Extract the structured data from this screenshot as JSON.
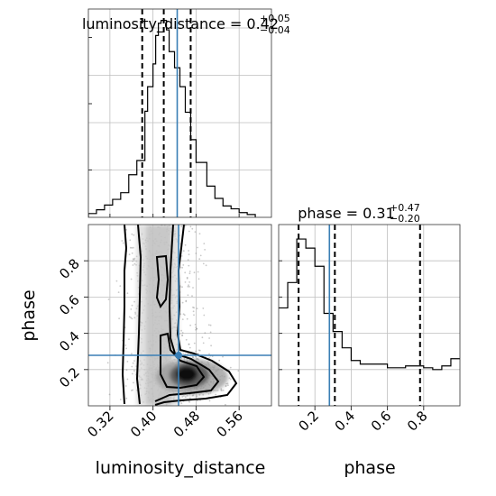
{
  "figure": {
    "type": "corner_plot",
    "parameters": [
      "luminosity_distance",
      "phase"
    ]
  },
  "chart_data": [
    {
      "type": "histogram",
      "parameter": "luminosity_distance",
      "title": {
        "main": "luminosity_distance = 0.42",
        "sup": "+0.05",
        "sub": "−0.04"
      },
      "xlim": [
        0.28,
        0.62
      ],
      "bin_edges": [
        0.28,
        0.295,
        0.31,
        0.325,
        0.34,
        0.355,
        0.37,
        0.385,
        0.39,
        0.4,
        0.405,
        0.41,
        0.415,
        0.425,
        0.43,
        0.44,
        0.45,
        0.46,
        0.47,
        0.48,
        0.5,
        0.515,
        0.53,
        0.545,
        0.56,
        0.575,
        0.59
      ],
      "bin_heights": [
        0.4,
        0.8,
        1.3,
        1.9,
        2.6,
        4.5,
        6.0,
        11.2,
        13.8,
        16.2,
        19.2,
        20.5,
        20.8,
        19.8,
        17.5,
        15.8,
        13.8,
        11.1,
        8.2,
        5.8,
        3.3,
        2.0,
        1.2,
        0.9,
        0.5,
        0.3
      ],
      "quantile_lines": [
        0.38,
        0.42,
        0.47
      ],
      "truth_line": 0.445,
      "ylim": [
        0,
        22
      ]
    },
    {
      "type": "scatter_contour",
      "x_parameter": "luminosity_distance",
      "y_parameter": "phase",
      "xlabel": "luminosity_distance",
      "ylabel": "phase",
      "xlim": [
        0.28,
        0.62
      ],
      "ylim": [
        0.0,
        1.0
      ],
      "x_ticks": [
        "0.32",
        "0.40",
        "0.48",
        "0.56"
      ],
      "x_tick_values": [
        0.32,
        0.4,
        0.48,
        0.56
      ],
      "y_ticks": [
        "0.2",
        "0.4",
        "0.6",
        "0.8"
      ],
      "y_tick_values": [
        0.2,
        0.4,
        0.6,
        0.8
      ],
      "truth": {
        "x": 0.445,
        "y": 0.28
      }
    },
    {
      "type": "histogram",
      "parameter": "phase",
      "title": {
        "main": "phase = 0.31",
        "sup": "+0.47",
        "sub": "−0.20"
      },
      "xlabel": "phase",
      "xlim": [
        0.0,
        1.0
      ],
      "x_ticks": [
        "0.2",
        "0.4",
        "0.6",
        "0.8"
      ],
      "x_tick_values": [
        0.2,
        0.4,
        0.6,
        0.8
      ],
      "bin_edges": [
        0.0,
        0.05,
        0.1,
        0.15,
        0.2,
        0.25,
        0.3,
        0.35,
        0.4,
        0.45,
        0.5,
        0.55,
        0.6,
        0.65,
        0.7,
        0.75,
        0.8,
        0.85,
        0.9,
        0.95,
        1.0
      ],
      "bin_heights": [
        5.4,
        6.8,
        9.2,
        8.7,
        7.7,
        5.1,
        4.1,
        3.2,
        2.5,
        2.3,
        2.3,
        2.3,
        2.1,
        2.1,
        2.2,
        2.2,
        2.1,
        2.0,
        2.2,
        2.6
      ],
      "quantile_lines": [
        0.11,
        0.31,
        0.78
      ],
      "truth_line": 0.28,
      "ylim": [
        0,
        10
      ]
    }
  ]
}
